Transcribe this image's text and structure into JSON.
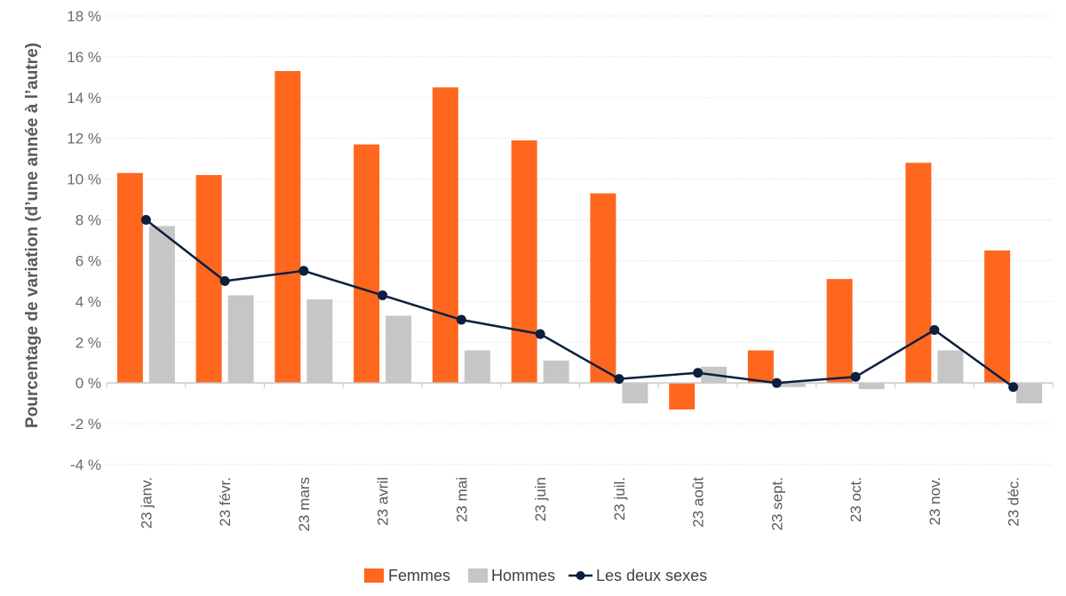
{
  "chart_data": {
    "type": "bar",
    "title": "",
    "xlabel": "",
    "ylabel": "Pourcentage de variation (d’une année à l’autre)",
    "ylim": [
      -4,
      18
    ],
    "yticks": [
      -4,
      -2,
      0,
      2,
      4,
      6,
      8,
      10,
      12,
      14,
      16,
      18
    ],
    "ytick_labels": [
      "-4 %",
      "-2 %",
      "0 %",
      "2 %",
      "4 %",
      "6 %",
      "8 %",
      "10 %",
      "12 %",
      "14 %",
      "16 %",
      "18 %"
    ],
    "categories": [
      "23 janv.",
      "23 févr.",
      "23 mars",
      "23 avril",
      "23 mai",
      "23 juin",
      "23 juil.",
      "23 août",
      "23 sept.",
      "23 oct.",
      "23 nov.",
      "23 déc."
    ],
    "series": [
      {
        "name": "Femmes",
        "kind": "bar",
        "color": "#ff671f",
        "values": [
          10.3,
          10.2,
          15.3,
          11.7,
          14.5,
          11.9,
          9.3,
          -1.3,
          1.6,
          5.1,
          10.8,
          6.5
        ]
      },
      {
        "name": "Hommes",
        "kind": "bar",
        "color": "#c6c6c6",
        "values": [
          7.7,
          4.3,
          4.1,
          3.3,
          1.6,
          1.1,
          -1.0,
          0.8,
          -0.2,
          -0.3,
          1.6,
          -1.0
        ]
      },
      {
        "name": "Les deux sexes",
        "kind": "line",
        "color": "#0c1f3f",
        "values": [
          8.0,
          5.0,
          5.5,
          4.3,
          3.1,
          2.4,
          0.2,
          0.5,
          0.0,
          0.3,
          2.6,
          -0.2
        ]
      }
    ],
    "grid": true,
    "legend_position": "bottom"
  }
}
